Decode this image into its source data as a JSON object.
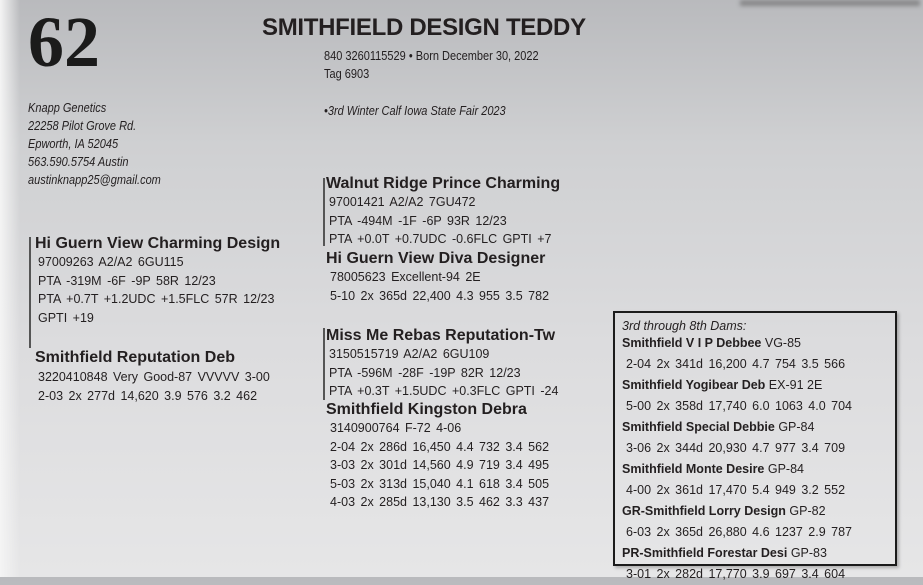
{
  "lot_number": "62",
  "title": "SMITHFIELD DESIGN TEDDY",
  "reg_line": "840 3260115529  •  Born December 30, 2022",
  "tag": "Tag 6903",
  "award": "•3rd Winter Calf Iowa State Fair 2023",
  "consignor": [
    "Knapp Genetics",
    "22258 Pilot Grove Rd.",
    "Epworth, IA  52045",
    "563.590.5754 Austin",
    "austinknapp25@gmail.com"
  ],
  "sire": {
    "name": "Hi Guern View Charming Design",
    "lines": [
      "97009263  A2/A2  6GU115",
      "PTA -319M -6F -9P 58R 12/23",
      "PTA +0.7T +1.2UDC +1.5FLC 57R 12/23",
      "GPTI +19"
    ]
  },
  "sire_sire": {
    "name": "Walnut Ridge Prince Charming",
    "lines": [
      "97001421  A2/A2  7GU472",
      "PTA -494M -1F -6P 93R 12/23",
      "PTA +0.0T +0.7UDC -0.6FLC GPTI +7"
    ]
  },
  "sire_dam": {
    "name": "Hi Guern View Diva Designer",
    "lines": [
      "78005623    Excellent-94 2E",
      "5-10  2x  365d  22,400  4.3  955  3.5  782"
    ]
  },
  "dam": {
    "name": "Smithfield Reputation Deb",
    "lines": [
      "3220410848    Very Good-87 VVVVV  3-00",
      "2-03  2x  277d  14,620  3.9  576  3.2  462"
    ]
  },
  "dam_sire": {
    "name": "Miss Me Rebas Reputation-Tw",
    "lines": [
      "3150515719  A2/A2  6GU109",
      "PTA -596M -28F -19P 82R 12/23",
      "PTA +0.3T +1.5UDC +0.3FLC GPTI -24"
    ]
  },
  "dam_dam": {
    "name": "Smithfield Kingston Debra",
    "lines": [
      "3140900764    F-72  4-06",
      "2-04  2x  286d  16,450  4.4  732  3.4  562",
      "3-03  2x  301d  14,560  4.9  719  3.4  495",
      "5-03  2x  313d  15,040  4.1  618  3.4  505",
      "4-03  2x  285d  13,130  3.5  462  3.3  437"
    ]
  },
  "dams_box": {
    "heading": "3rd through 8th Dams:",
    "dams": [
      {
        "name": "Smithfield V I P Debbee",
        "score": "VG-85",
        "record": "2-04  2x  341d  16,200  4.7  754  3.5  566"
      },
      {
        "name": "Smithfield Yogibear Deb",
        "score": "EX-91 2E",
        "record": "5-00  2x  358d  17,740  6.0  1063  4.0  704"
      },
      {
        "name": "Smithfield Special Debbie",
        "score": "GP-84",
        "record": "3-06  2x  344d  20,930  4.7  977  3.4  709"
      },
      {
        "name": "Smithfield Monte Desire",
        "score": "GP-84",
        "record": "4-00  2x  361d  17,470  5.4  949  3.2  552"
      },
      {
        "name": "GR-Smithfield Lorry Design",
        "score": "GP-82",
        "record": "6-03  2x  365d  26,880  4.6  1237  2.9  787"
      },
      {
        "name": "PR-Smithfield Forestar Desi",
        "score": "GP-83",
        "record": "3-01  2x  282d  17,770  3.9  697  3.4  604"
      }
    ]
  }
}
